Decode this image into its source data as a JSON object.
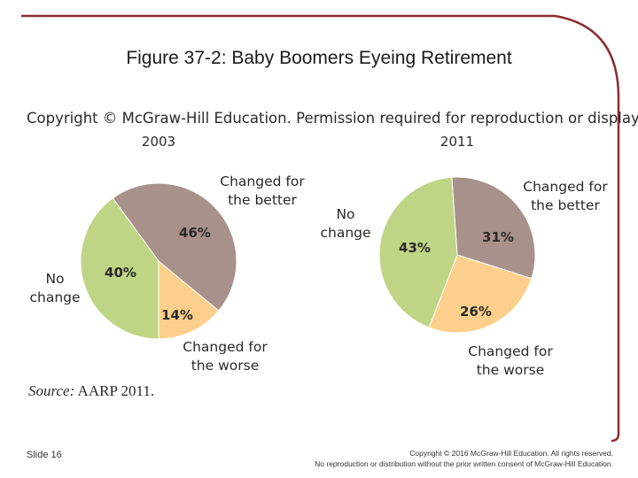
{
  "slide": {
    "title": "Figure 37-2: Baby Boomers Eyeing Retirement",
    "copyright_notice": "Copyright © McGraw-Hill Education. Permission required for reproduction or display.",
    "source_label": "Source:",
    "source_text": " AARP 2011.",
    "slide_number": "Slide 16",
    "footer_line1": "Copyright © 2016 McGraw-Hill Education. All rights reserved.",
    "footer_line2": "No reproduction or distribution without the prior written consent of McGraw-Hill Education.",
    "frame_color": "#8b2e2e"
  },
  "chart_data": [
    {
      "type": "pie",
      "title": "2003",
      "slices": [
        {
          "category": "Changed for the better",
          "value": 46,
          "label": "46%",
          "color": "#a8918a"
        },
        {
          "category": "Changed for the worse",
          "value": 14,
          "label": "14%",
          "color": "#fcd08c"
        },
        {
          "category": "No change",
          "value": 40,
          "label": "40%",
          "color": "#bfd585"
        }
      ],
      "category_labels": {
        "better": [
          "Changed for",
          "the better"
        ],
        "worse": [
          "Changed for",
          "the worse"
        ],
        "nochange": [
          "No",
          "change"
        ]
      }
    },
    {
      "type": "pie",
      "title": "2011",
      "slices": [
        {
          "category": "Changed for the better",
          "value": 31,
          "label": "31%",
          "color": "#a8918a"
        },
        {
          "category": "Changed for the worse",
          "value": 26,
          "label": "26%",
          "color": "#fcd08c"
        },
        {
          "category": "No change",
          "value": 43,
          "label": "43%",
          "color": "#bfd585"
        }
      ],
      "category_labels": {
        "better": [
          "Changed for",
          "the better"
        ],
        "worse": [
          "Changed for",
          "the worse"
        ],
        "nochange": [
          "No",
          "change"
        ]
      }
    }
  ]
}
